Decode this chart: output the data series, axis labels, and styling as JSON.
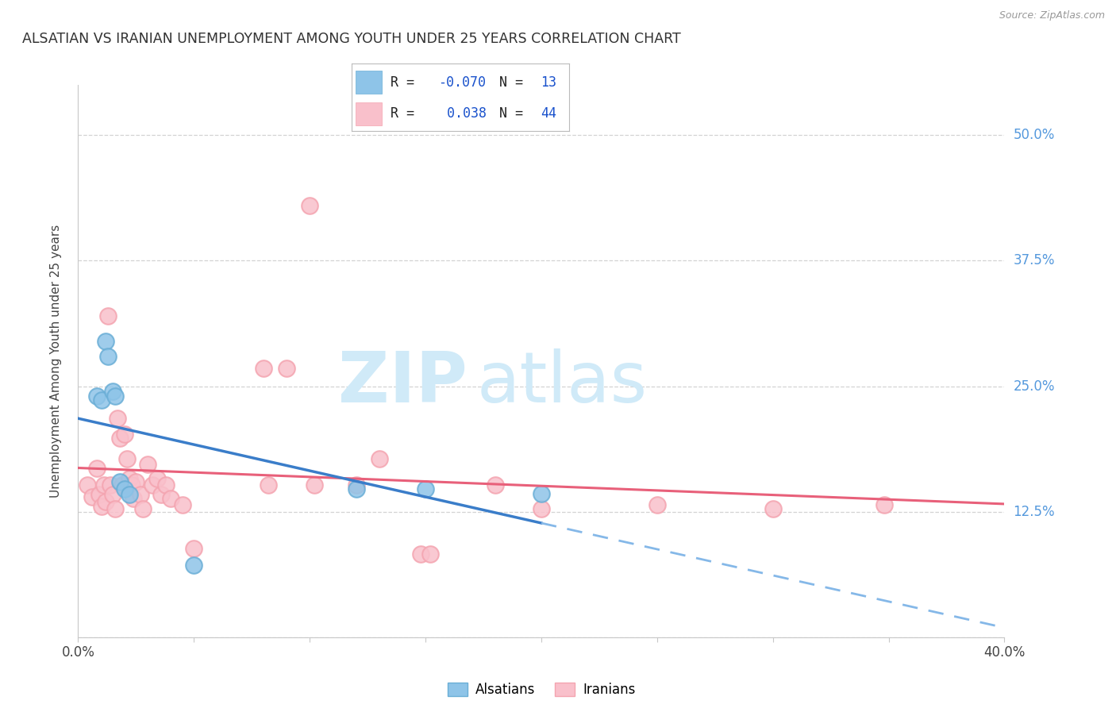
{
  "title": "ALSATIAN VS IRANIAN UNEMPLOYMENT AMONG YOUTH UNDER 25 YEARS CORRELATION CHART",
  "source": "Source: ZipAtlas.com",
  "ylabel": "Unemployment Among Youth under 25 years",
  "xlim": [
    0.0,
    0.4
  ],
  "ylim": [
    0.0,
    0.55
  ],
  "x_ticks": [
    0.0,
    0.05,
    0.1,
    0.15,
    0.2,
    0.25,
    0.3,
    0.35,
    0.4
  ],
  "x_tick_labels": [
    "0.0%",
    "",
    "",
    "",
    "",
    "",
    "",
    "",
    "40.0%"
  ],
  "y_ticks_right": [
    0.0,
    0.125,
    0.25,
    0.375,
    0.5
  ],
  "y_tick_labels_right": [
    "",
    "12.5%",
    "25.0%",
    "37.5%",
    "50.0%"
  ],
  "alsatian_color": "#8ec4e8",
  "alsatian_edge": "#6aaed6",
  "iranian_color": "#f9c0cb",
  "iranian_edge": "#f4a4b0",
  "alsatian_R": -0.07,
  "alsatian_N": 13,
  "iranian_R": 0.038,
  "iranian_N": 44,
  "alsatian_x": [
    0.008,
    0.01,
    0.012,
    0.013,
    0.015,
    0.016,
    0.018,
    0.02,
    0.022,
    0.05,
    0.12,
    0.15,
    0.2
  ],
  "alsatian_y": [
    0.24,
    0.236,
    0.295,
    0.28,
    0.245,
    0.24,
    0.155,
    0.148,
    0.142,
    0.072,
    0.148,
    0.148,
    0.143
  ],
  "iranian_x": [
    0.004,
    0.006,
    0.008,
    0.009,
    0.01,
    0.011,
    0.012,
    0.013,
    0.014,
    0.015,
    0.016,
    0.017,
    0.018,
    0.019,
    0.02,
    0.021,
    0.022,
    0.023,
    0.024,
    0.025,
    0.027,
    0.028,
    0.03,
    0.032,
    0.034,
    0.036,
    0.038,
    0.04,
    0.045,
    0.05,
    0.08,
    0.082,
    0.09,
    0.1,
    0.102,
    0.12,
    0.13,
    0.148,
    0.152,
    0.18,
    0.2,
    0.25,
    0.3,
    0.348
  ],
  "iranian_y": [
    0.152,
    0.14,
    0.168,
    0.142,
    0.13,
    0.152,
    0.135,
    0.32,
    0.152,
    0.142,
    0.128,
    0.218,
    0.198,
    0.152,
    0.202,
    0.178,
    0.158,
    0.152,
    0.138,
    0.155,
    0.142,
    0.128,
    0.172,
    0.152,
    0.158,
    0.142,
    0.152,
    0.138,
    0.132,
    0.088,
    0.268,
    0.152,
    0.268,
    0.43,
    0.152,
    0.152,
    0.178,
    0.083,
    0.083,
    0.152,
    0.128,
    0.132,
    0.128,
    0.132
  ],
  "watermark_zip": "ZIP",
  "watermark_atlas": "atlas",
  "watermark_color": "#d0eaf8",
  "bg_color": "#ffffff",
  "grid_color": "#c8c8c8",
  "blue_line_color": "#3a7dc9",
  "blue_dash_color": "#85b8e8",
  "pink_line_color": "#e8607a",
  "legend_R_color": "#1a52cc",
  "legend_N_color": "#1a52cc"
}
